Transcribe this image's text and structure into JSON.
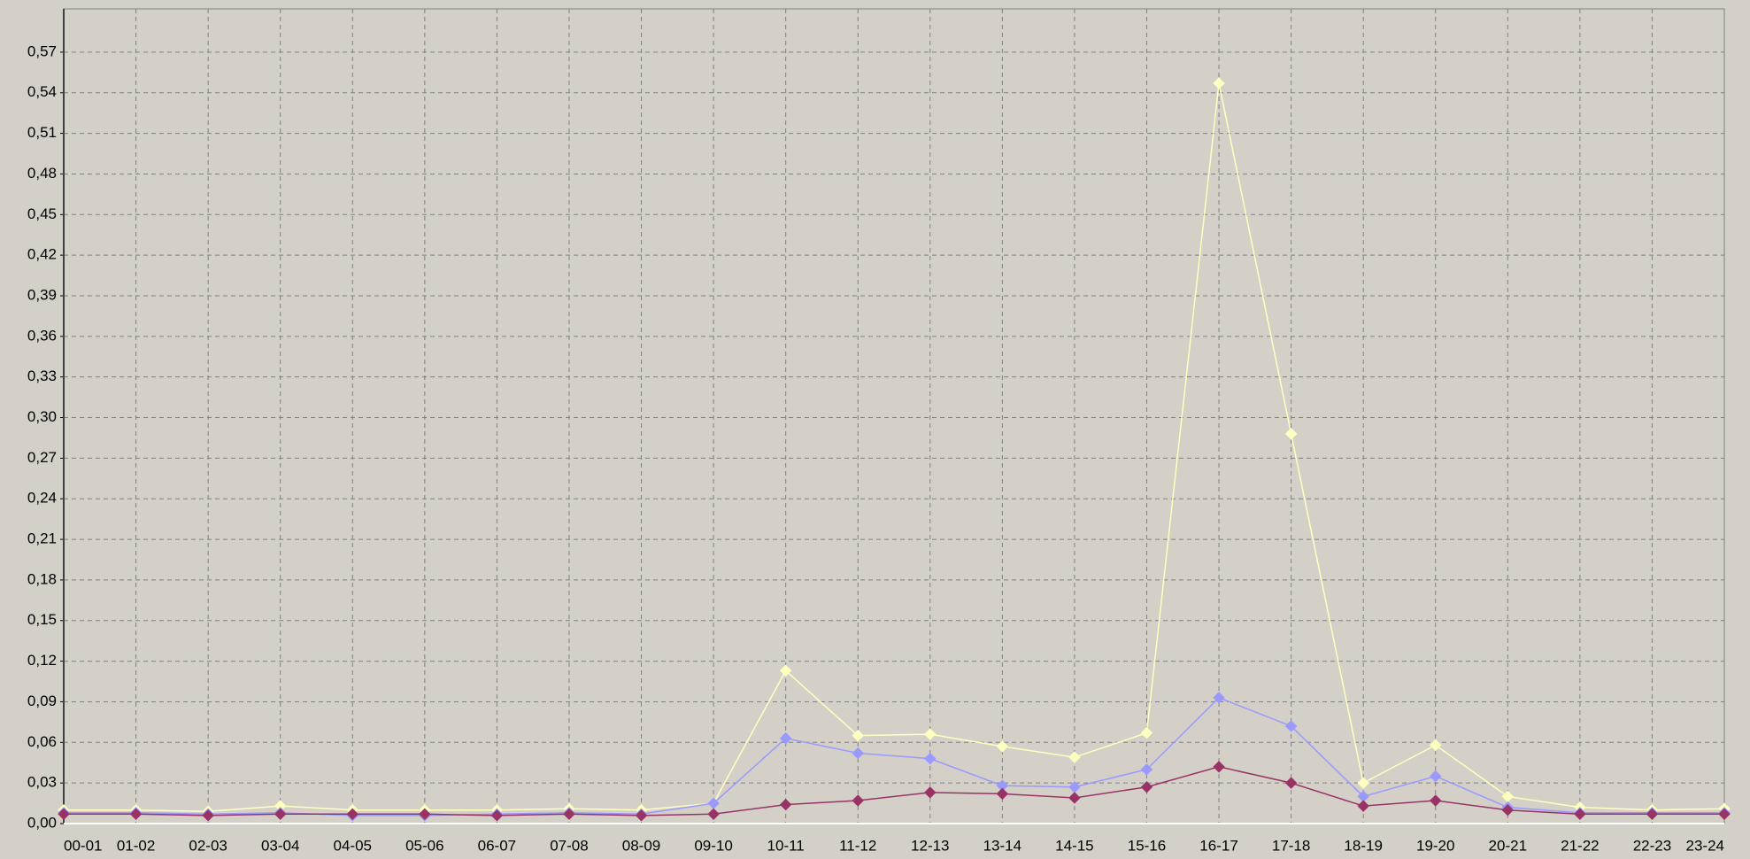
{
  "chart_data": {
    "type": "line",
    "categories": [
      "00-01",
      "01-02",
      "02-03",
      "03-04",
      "04-05",
      "05-06",
      "06-07",
      "07-08",
      "08-09",
      "09-10",
      "10-11",
      "11-12",
      "12-13",
      "13-14",
      "14-15",
      "15-16",
      "16-17",
      "17-18",
      "18-19",
      "19-20",
      "20-21",
      "21-22",
      "22-23",
      "23-24"
    ],
    "series": [
      {
        "color": "#ffffc0",
        "values": [
          0.01,
          0.01,
          0.009,
          0.013,
          0.01,
          0.01,
          0.01,
          0.011,
          0.01,
          0.015,
          0.113,
          0.065,
          0.066,
          0.057,
          0.049,
          0.067,
          0.547,
          0.288,
          0.03,
          0.058,
          0.02,
          0.012,
          0.01,
          0.011
        ]
      },
      {
        "color": "#9999ff",
        "values": [
          0.008,
          0.008,
          0.007,
          0.008,
          0.006,
          0.006,
          0.007,
          0.008,
          0.007,
          0.015,
          0.063,
          0.052,
          0.048,
          0.028,
          0.027,
          0.04,
          0.093,
          0.072,
          0.02,
          0.035,
          0.012,
          0.008,
          0.008,
          0.008
        ]
      },
      {
        "color": "#993366",
        "values": [
          0.007,
          0.007,
          0.006,
          0.007,
          0.007,
          0.007,
          0.006,
          0.007,
          0.006,
          0.007,
          0.014,
          0.017,
          0.023,
          0.022,
          0.019,
          0.027,
          0.042,
          0.03,
          0.013,
          0.017,
          0.01,
          0.007,
          0.007,
          0.007
        ]
      }
    ],
    "ylim": [
      0,
      0.602
    ],
    "yticks": [
      {
        "value": 0,
        "label": "0,00"
      },
      {
        "value": 0.03,
        "label": "0,03"
      },
      {
        "value": 0.06,
        "label": "0,06"
      },
      {
        "value": 0.09,
        "label": "0,09"
      },
      {
        "value": 0.12,
        "label": "0,12"
      },
      {
        "value": 0.15,
        "label": "0,15"
      },
      {
        "value": 0.18,
        "label": "0,18"
      },
      {
        "value": 0.21,
        "label": "0,21"
      },
      {
        "value": 0.24,
        "label": "0,24"
      },
      {
        "value": 0.27,
        "label": "0,27"
      },
      {
        "value": 0.3,
        "label": "0,30"
      },
      {
        "value": 0.33,
        "label": "0,33"
      },
      {
        "value": 0.36,
        "label": "0,36"
      },
      {
        "value": 0.39,
        "label": "0,39"
      },
      {
        "value": 0.42,
        "label": "0,42"
      },
      {
        "value": 0.45,
        "label": "0,45"
      },
      {
        "value": 0.48,
        "label": "0,48"
      },
      {
        "value": 0.51,
        "label": "0,51"
      },
      {
        "value": 0.54,
        "label": "0,54"
      },
      {
        "value": 0.57,
        "label": "0,57"
      }
    ],
    "grid": true
  }
}
